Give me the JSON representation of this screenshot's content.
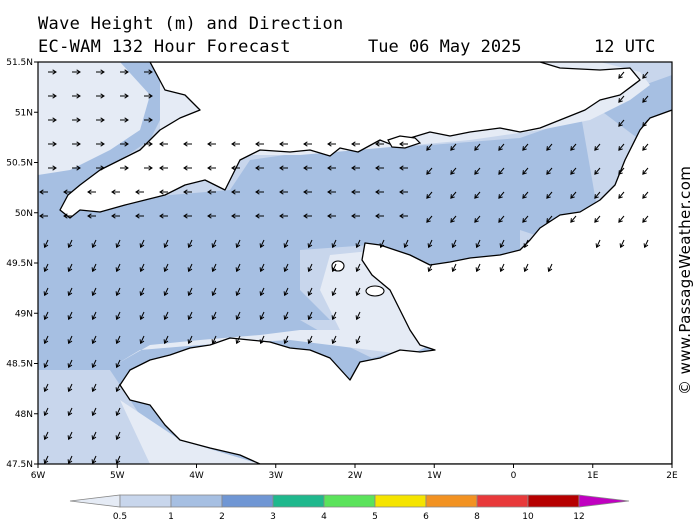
{
  "header": {
    "title": "Wave Height (m) and Direction",
    "model": "EC-WAM 132 Hour Forecast",
    "date": "Tue 06 May 2025",
    "time": "12 UTC"
  },
  "map": {
    "lat_labels": [
      "51.5N",
      "51N",
      "50.5N",
      "50N",
      "49.5N",
      "49N",
      "48.5N",
      "48N",
      "47.5N"
    ],
    "lon_labels": [
      "6W",
      "5W",
      "4W",
      "3W",
      "2W",
      "1W",
      "0",
      "1E",
      "2E"
    ]
  },
  "legend": {
    "colors": [
      "#e5ebf5",
      "#c8d6ec",
      "#a6bfe2",
      "#6f96d4",
      "#1fb88d",
      "#5be35b",
      "#f5e400",
      "#f29222",
      "#e8393a",
      "#b60000",
      "#c000c0"
    ],
    "labels": [
      "0.5",
      "1",
      "2",
      "3",
      "4",
      "5",
      "6",
      "8",
      "10",
      "12"
    ]
  },
  "credit": "© www.PassageWeather.com"
}
